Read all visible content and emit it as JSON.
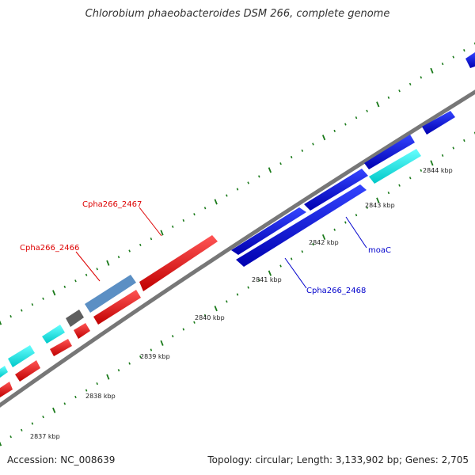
{
  "title": "Chlorobium phaeobacteroides DSM 266, complete genome",
  "footer": {
    "accession": "Accession: NC_008639",
    "summary": "Topology: circular; Length: 3,133,902 bp; Genes: 2,705"
  },
  "ticks": {
    "labels": [
      "2837 kbp",
      "2838 kbp",
      "2839 kbp",
      "2840 kbp",
      "2841 kbp",
      "2842 kbp",
      "2843 kbp",
      "2844 kbp"
    ]
  },
  "gene_labels": [
    {
      "text": "Cpha266_2467",
      "color": "#dd0000"
    },
    {
      "text": "Cpha266_2466",
      "color": "#dd0000"
    },
    {
      "text": "moaC",
      "color": "#0000cc"
    },
    {
      "text": "Cpha266_2468",
      "color": "#0000cc"
    }
  ],
  "colors": {
    "backbone": "#8c8c8c",
    "tick": "#1a7a1a",
    "forward_cds": "#0000dd",
    "reverse_cds": "#ee0000",
    "rna": "#00e5e5",
    "misc": "#5b8fc4",
    "other": "#666666"
  }
}
